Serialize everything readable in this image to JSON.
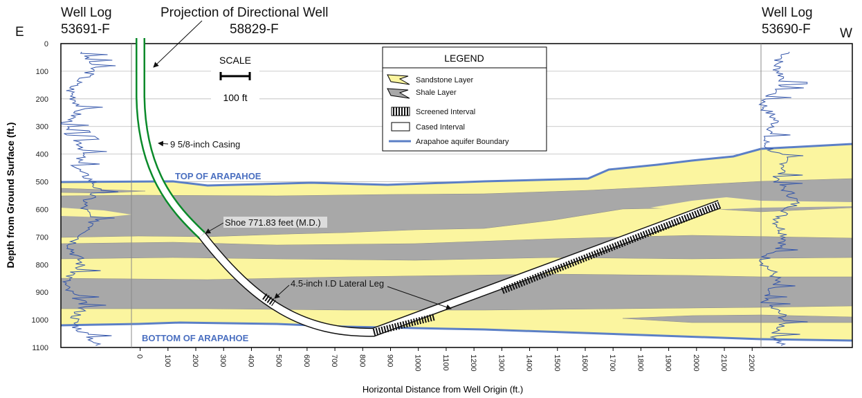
{
  "header": {
    "east": "E",
    "west": "W",
    "left_log": [
      "Well Log",
      "53691-F"
    ],
    "well_title": [
      "Projection of Directional Well",
      "58829-F"
    ],
    "right_log": [
      "Well Log",
      "53690-F"
    ]
  },
  "axes": {
    "y_label": "Depth from Ground Surface (ft.)",
    "x_label": "Horizontal Distance from Well Origin (ft.)",
    "ylim": [
      0,
      1100
    ],
    "yticks": [
      0,
      100,
      200,
      300,
      400,
      500,
      600,
      700,
      800,
      900,
      1000,
      1100
    ],
    "xlim": [
      -285,
      2560
    ],
    "xticks": [
      0,
      100,
      200,
      300,
      400,
      500,
      600,
      700,
      800,
      900,
      1000,
      1100,
      1200,
      1300,
      1400,
      1500,
      1600,
      1700,
      1800,
      1900,
      2000,
      2100,
      2200
    ]
  },
  "scale": {
    "title": "SCALE",
    "label": "100 ft"
  },
  "legend": {
    "title": "LEGEND",
    "items": [
      "Sandstone Layer",
      "Shale Layer",
      "Screened Interval",
      "Cased Interval",
      "Arapahoe aquifer Boundary"
    ]
  },
  "annotations": {
    "casing": "9 5/8-inch Casing",
    "shoe": "Shoe 771.83 feet (M.D.)",
    "lateral": "4.5-inch I.D Lateral Leg",
    "top": "TOP OF ARAPAHOE",
    "bottom": "BOTTOM OF ARAPAHOE"
  }
}
